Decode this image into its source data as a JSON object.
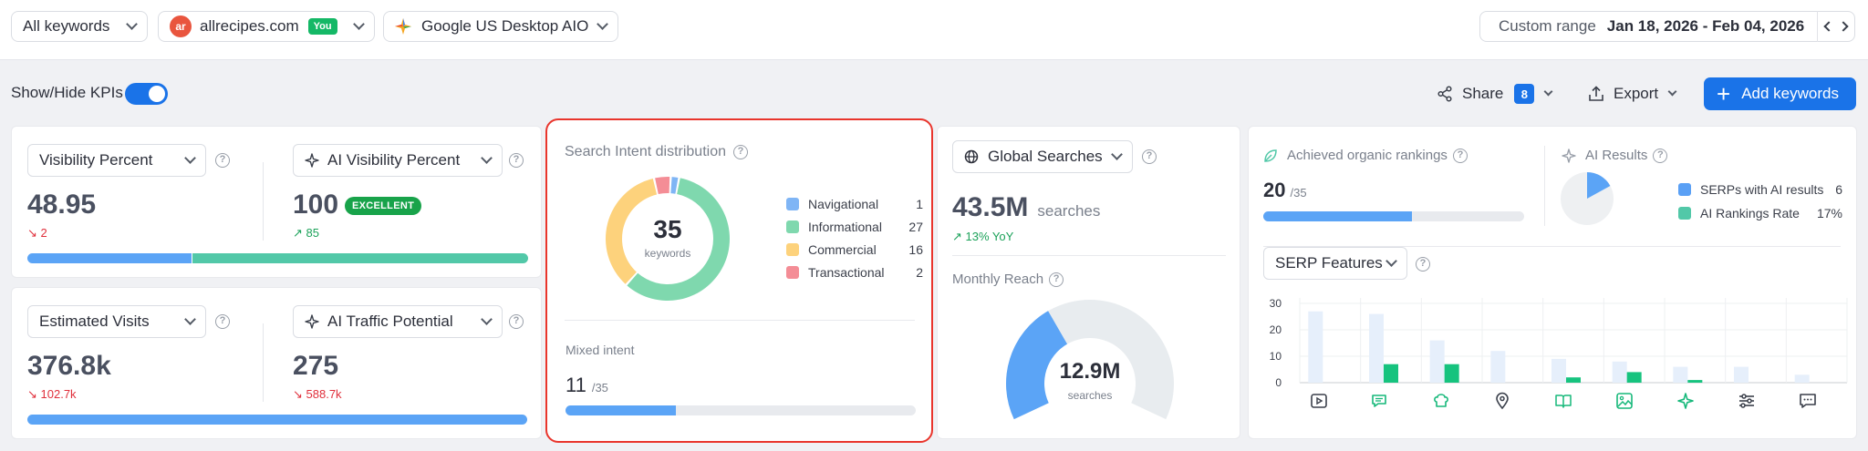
{
  "topbar": {
    "keywords_filter": "All keywords",
    "domain_logo": "ar",
    "domain": "allrecipes.com",
    "you_badge": "You",
    "engine": "Google US Desktop AIO",
    "custom_range_label": "Custom range",
    "date_range": "Jan 18, 2026 - Feb 04, 2026"
  },
  "toolbar": {
    "show_hide_kpis": "Show/Hide KPIs",
    "share_label": "Share",
    "share_count": "8",
    "export_label": "Export",
    "add_keywords_label": "Add keywords"
  },
  "kpi_visibility": {
    "select": "Visibility Percent",
    "value": "48.95",
    "delta": "2"
  },
  "kpi_ai_visibility": {
    "select": "AI Visibility Percent",
    "value": "100",
    "badge": "EXCELLENT",
    "delta": "85"
  },
  "kpi_visits": {
    "select": "Estimated Visits",
    "value": "376.8k",
    "delta": "102.7k"
  },
  "kpi_ai_traffic": {
    "select": "AI Traffic Potential",
    "value": "275",
    "delta": "588.7k"
  },
  "intent": {
    "title": "Search Intent distribution",
    "total": "35",
    "total_label": "keywords",
    "items": [
      {
        "name": "Navigational",
        "value": 1,
        "color": "#7fb5f5"
      },
      {
        "name": "Informational",
        "value": 27,
        "color": "#7fd8ae"
      },
      {
        "name": "Commercial",
        "value": 16,
        "color": "#fdd27c"
      },
      {
        "name": "Transactional",
        "value": 2,
        "color": "#f48d96"
      }
    ],
    "mixed_label": "Mixed intent",
    "mixed_value": "11",
    "mixed_total": "/35",
    "mixed_fraction": 0.314
  },
  "global": {
    "select": "Global Searches",
    "value": "43.5M",
    "unit": "searches",
    "yoy": "13% YoY",
    "reach_label": "Monthly Reach",
    "reach_value": "12.9M",
    "reach_unit": "searches",
    "reach_fraction": 0.37
  },
  "organic": {
    "label": "Achieved organic rankings",
    "value": "20",
    "total": "/35",
    "fraction": 0.571
  },
  "ai_results": {
    "label": "AI Results",
    "legend": [
      {
        "name": "SERPs with AI results",
        "value": "6",
        "color": "#5aa0f5"
      },
      {
        "name": "AI Rankings Rate",
        "value": "17%",
        "color": "#52c8a8"
      }
    ],
    "pie_fraction": 0.17
  },
  "serp": {
    "select": "SERP Features",
    "icons": [
      "video-icon",
      "reviews-icon",
      "recipes-icon",
      "local-pack-icon",
      "knowledge-panel-icon",
      "images-icon",
      "ai-overview-icon",
      "filters-icon",
      "discussions-icon"
    ]
  },
  "chart_data": {
    "type": "bar",
    "title": "",
    "xlabel": "",
    "ylabel": "",
    "ylim": [
      0,
      30
    ],
    "yticks": [
      "30",
      "20",
      "10",
      "0"
    ],
    "categories": [
      "video",
      "reviews",
      "recipes",
      "local pack",
      "knowledge panel",
      "images",
      "ai overview",
      "filters",
      "discussions"
    ],
    "series": [
      {
        "values": [
          27,
          26,
          16,
          12,
          9,
          8,
          6,
          6,
          3
        ],
        "color": "#e6effb"
      },
      {
        "values": [
          0,
          7,
          7,
          0,
          2,
          4,
          1,
          0,
          0
        ],
        "color": "#16c37e"
      }
    ]
  }
}
